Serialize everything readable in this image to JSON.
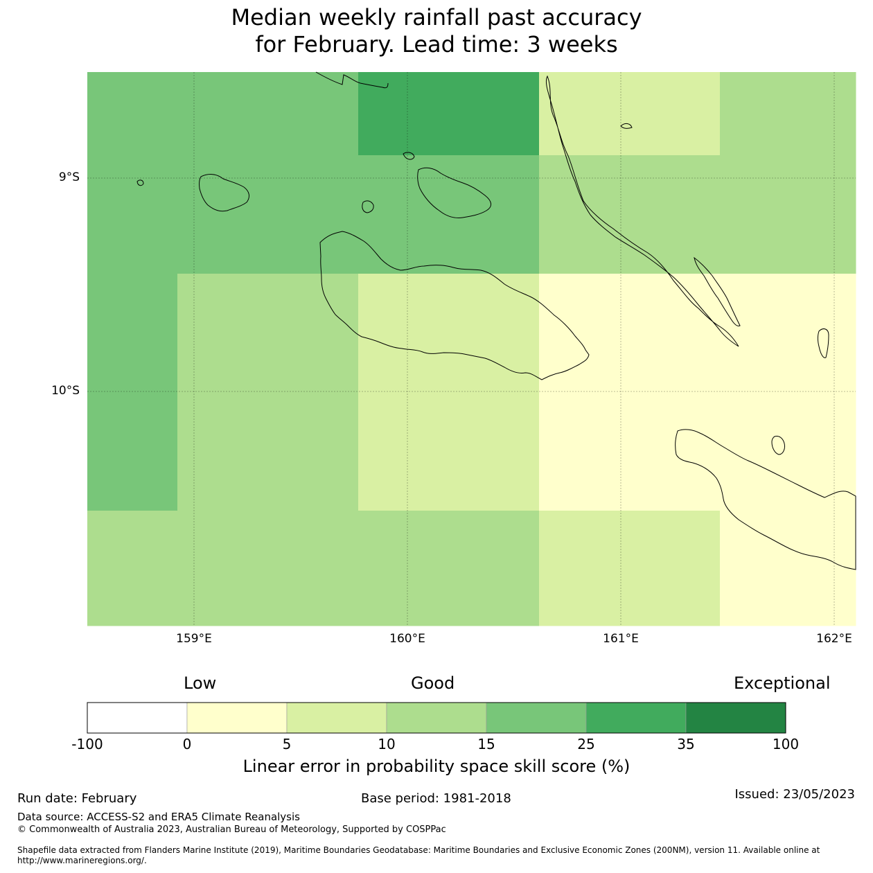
{
  "title": {
    "line1": "Median weekly rainfall past accuracy",
    "line2": "for February. Lead time: 3 weeks"
  },
  "map": {
    "lat_labels": [
      "9°S",
      "10°S"
    ],
    "lon_labels": [
      "159°E",
      "160°E",
      "161°E",
      "162°E"
    ],
    "lon_range": [
      158.5,
      162.1
    ],
    "lat_range_south": [
      8.5,
      11.1
    ],
    "category_colors": {
      "c0_5": "#ffffcc",
      "c5_10": "#d9f0a3",
      "c10_15": "#addd8e",
      "c15_25": "#78c679",
      "c25_35": "#41ab5d",
      "c35_100": "#238443"
    },
    "grid_rows": [
      [
        "c15_25",
        "c15_25",
        "c15_25",
        "c15_25",
        "c15_25",
        "c15_25",
        "c25_35",
        "c25_35",
        "c25_35",
        "c25_35",
        "c5_10",
        "c5_10",
        "c5_10",
        "c5_10",
        "c10_15",
        "c10_15",
        "c10_15"
      ],
      [
        "c15_25",
        "c15_25",
        "c15_25",
        "c15_25",
        "c15_25",
        "c15_25",
        "c15_25",
        "c15_25",
        "c15_25",
        "c15_25",
        "c10_15",
        "c10_15",
        "c10_15",
        "c10_15",
        "c10_15",
        "c10_15",
        "c10_15"
      ],
      [
        "c15_25",
        "c15_25",
        "c10_15",
        "c10_15",
        "c10_15",
        "c10_15",
        "c5_10",
        "c5_10",
        "c5_10",
        "c5_10",
        "c0_5",
        "c0_5",
        "c0_5",
        "c0_5",
        "c0_5",
        "c0_5",
        "c0_5"
      ],
      [
        "c15_25",
        "c15_25",
        "c10_15",
        "c10_15",
        "c10_15",
        "c10_15",
        "c5_10",
        "c5_10",
        "c5_10",
        "c5_10",
        "c0_5",
        "c0_5",
        "c0_5",
        "c0_5",
        "c0_5",
        "c0_5",
        "c0_5"
      ],
      [
        "c10_15",
        "c10_15",
        "c10_15",
        "c10_15",
        "c10_15",
        "c10_15",
        "c10_15",
        "c10_15",
        "c10_15",
        "c10_15",
        "c5_10",
        "c5_10",
        "c5_10",
        "c5_10",
        "c0_5",
        "c0_5",
        "c0_5"
      ]
    ]
  },
  "colorbar": {
    "categories": [
      "Low",
      "Good",
      "Exceptional"
    ],
    "ticks": [
      "-100",
      "0",
      "5",
      "10",
      "15",
      "25",
      "35",
      "100"
    ],
    "colors": [
      "#ffffff",
      "#ffffcc",
      "#d9f0a3",
      "#addd8e",
      "#78c679",
      "#41ab5d",
      "#238443"
    ],
    "label": "Linear error in probability space skill score (%)"
  },
  "footer": {
    "run_date": "Run date: February",
    "base_period": "Base period: 1981-2018",
    "issued": "Issued: 23/05/2023",
    "data_source": "Data source: ACCESS-S2 and ERA5 Climate Reanalysis",
    "copyright": "© Commonwealth of Australia 2023, Australian Bureau of Meteorology, Supported by COSPPac",
    "shapefile": "Shapefile data extracted from Flanders Marine Institute (2019), Maritime Boundaries Geodatabase: Maritime Boundaries and Exclusive Economic Zones (200NM), version 11. Available online at http://www.marineregions.org/."
  }
}
